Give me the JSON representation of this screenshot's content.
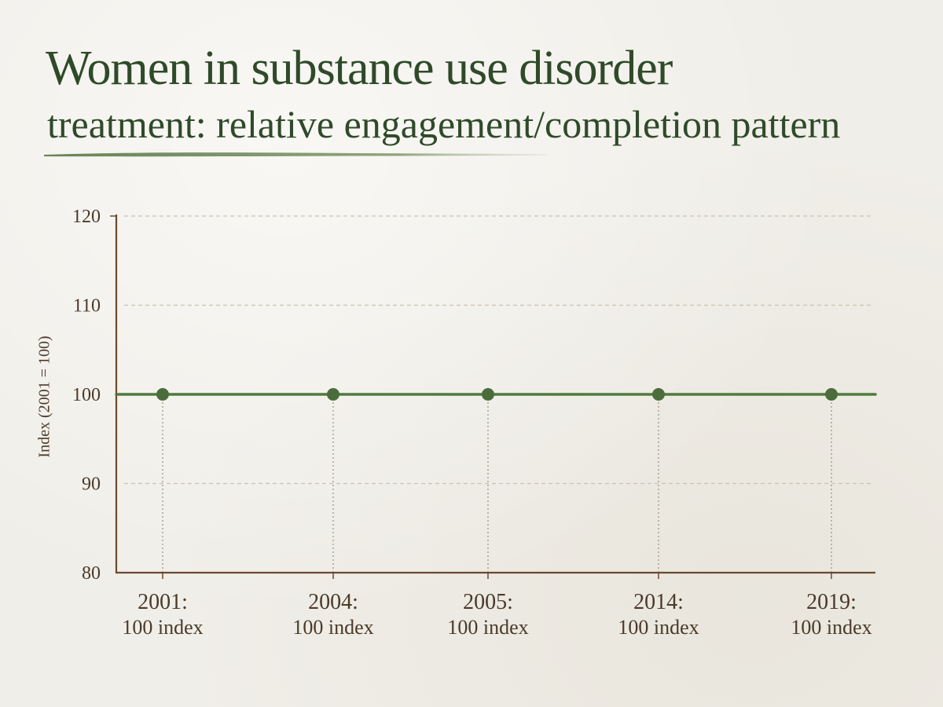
{
  "header": {
    "title_line1": "Women in substance use disorder",
    "title_line2": "treatment: relative engagement/completion pattern"
  },
  "colors": {
    "accent": "#4f7a3f",
    "axis": "#6b4a30",
    "title": "#2f4a29",
    "grid": "#c9c2b4",
    "text": "#4a3a2a"
  },
  "chart_data": {
    "type": "line",
    "title": "Women in substance use disorder treatment: relative engagement/completion pattern",
    "xlabel": "",
    "ylabel": "Index (2001 = 100)",
    "ylim": [
      80,
      120
    ],
    "yticks": [
      80,
      90,
      100,
      110,
      120
    ],
    "grid": true,
    "categories": [
      "2001",
      "2004",
      "2005",
      "2014",
      "2019"
    ],
    "x_labels": [
      "2001:",
      "2004:",
      "2005:",
      "2014:",
      "2019:"
    ],
    "value_labels": [
      "100 index",
      "100 index",
      "100 index",
      "100 index",
      "100 index"
    ],
    "series": [
      {
        "values": [
          100,
          100,
          100,
          100,
          100
        ]
      }
    ]
  }
}
